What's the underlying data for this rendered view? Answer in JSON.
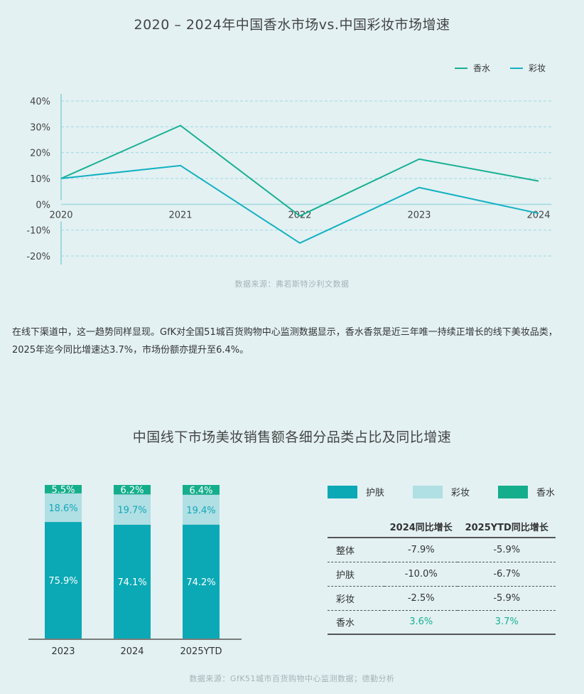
{
  "top": {
    "title": "2020 – 2024年中国香水市场vs.中国彩妆市场增速",
    "source": "数据来源：弗若斯特沙利文数据"
  },
  "paragraph": "在线下渠道中，这一趋势同样显现。GfK对全国51城百货购物中心监测数据显示，香水香氛是近三年唯一持续正增长的线下美妆品类，2025年迄今同比增速达3.7%，市场份额亦提升至6.4%。",
  "bottom": {
    "title": "中国线下市场美妆销售额各细分品类占比及同比增速",
    "source": "数据来源：GfK51城市百货购物中心监测数据；德勤分析",
    "table": {
      "headers": [
        "",
        "2024同比增长",
        "2025YTD同比增长"
      ],
      "rows": [
        {
          "label": "整体",
          "v2024": "-7.9%",
          "v2025": "-5.9%"
        },
        {
          "label": "护肤",
          "v2024": "-10.0%",
          "v2025": "-6.7%"
        },
        {
          "label": "彩妆",
          "v2024": "-2.5%",
          "v2025": "-5.9%"
        },
        {
          "label": "香水",
          "v2024": "3.6%",
          "v2025": "3.7%"
        }
      ]
    }
  },
  "colors": {
    "perfume": "#17b092",
    "makeup_line": "#14b1c2",
    "skincare": "#0aa9b5",
    "makeup_bar": "#b0dfe4",
    "perfume_bar": "#15ae8c",
    "grid": "#9fd8df"
  },
  "chart_data": [
    {
      "type": "line",
      "x": [
        "2020",
        "2021",
        "2022",
        "2023",
        "2024"
      ],
      "series": [
        {
          "name": "香水",
          "values": [
            10,
            30.5,
            -4.5,
            17.5,
            9
          ],
          "color": "#17b092"
        },
        {
          "name": "彩妆",
          "values": [
            10,
            15,
            -15,
            6.5,
            -3.5
          ],
          "color": "#14b1c2"
        }
      ],
      "yticks": [
        "40%",
        "30%",
        "20%",
        "10%",
        "0%",
        "-10%",
        "-20%"
      ],
      "ylim": [
        -20,
        40
      ],
      "grid": true,
      "legend": "top-right"
    },
    {
      "type": "bar",
      "stacked": true,
      "categories": [
        "2023",
        "2024",
        "2025YTD"
      ],
      "series": [
        {
          "name": "护肤",
          "values": [
            75.9,
            74.1,
            74.2
          ],
          "labels": [
            "75.9%",
            "74.1%",
            "74.2%"
          ],
          "color": "#0aa9b5",
          "text_color": "#ffffff"
        },
        {
          "name": "彩妆",
          "values": [
            18.6,
            19.7,
            19.4
          ],
          "labels": [
            "18.6%",
            "19.7%",
            "19.4%"
          ],
          "color": "#b0dfe4",
          "text_color": "#14a8b8"
        },
        {
          "name": "香水",
          "values": [
            5.5,
            6.2,
            6.4
          ],
          "labels": [
            "5.5%",
            "6.2%",
            "6.4%"
          ],
          "color": "#15ae8c",
          "text_color": "#ffffff"
        }
      ],
      "legend": "top-right"
    }
  ]
}
